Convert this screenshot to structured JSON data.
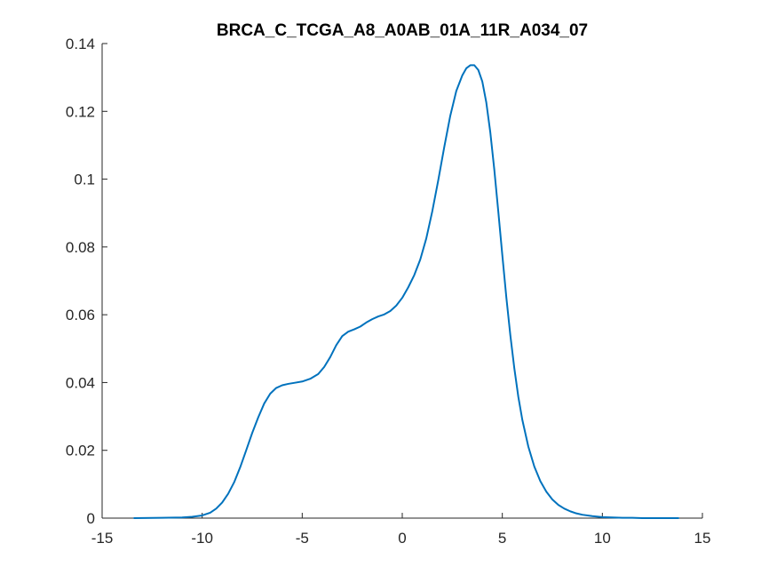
{
  "chart_data": {
    "type": "line",
    "title": "BRCA_C_TCGA_A8_A0AB_01A_11R_A034_07",
    "xlabel": "",
    "ylabel": "",
    "xlim": [
      -15,
      15
    ],
    "ylim": [
      0,
      0.14
    ],
    "xticks": [
      -15,
      -10,
      -5,
      0,
      5,
      10,
      15
    ],
    "xtick_labels": [
      "-15",
      "-10",
      "-5",
      "0",
      "5",
      "10",
      "15"
    ],
    "yticks": [
      0,
      0.02,
      0.04,
      0.06,
      0.08,
      0.1,
      0.12,
      0.14
    ],
    "ytick_labels": [
      "0",
      "0.02",
      "0.04",
      "0.06",
      "0.08",
      "0.1",
      "0.12",
      "0.14"
    ],
    "grid": false,
    "line_color": "#0072BD",
    "series": [
      {
        "x": [
          -13.4,
          -12.0,
          -11.0,
          -10.5,
          -10.0,
          -9.6,
          -9.3,
          -9.0,
          -8.7,
          -8.4,
          -8.1,
          -7.8,
          -7.5,
          -7.2,
          -6.9,
          -6.6,
          -6.3,
          -6.0,
          -5.7,
          -5.4,
          -5.0,
          -4.6,
          -4.2,
          -3.9,
          -3.6,
          -3.3,
          -3.0,
          -2.7,
          -2.4,
          -2.1,
          -1.8,
          -1.5,
          -1.2,
          -0.9,
          -0.6,
          -0.3,
          0.0,
          0.3,
          0.6,
          0.9,
          1.2,
          1.5,
          1.8,
          2.1,
          2.4,
          2.7,
          3.0,
          3.2,
          3.4,
          3.6,
          3.8,
          4.0,
          4.2,
          4.4,
          4.6,
          4.8,
          5.0,
          5.2,
          5.4,
          5.6,
          5.8,
          6.0,
          6.3,
          6.6,
          6.9,
          7.2,
          7.5,
          7.8,
          8.1,
          8.4,
          8.7,
          9.0,
          9.5,
          10.0,
          10.5,
          11.0,
          11.5,
          12.0,
          13.0,
          13.8
        ],
        "y": [
          0.0,
          0.0001,
          0.0002,
          0.0004,
          0.0008,
          0.0016,
          0.0028,
          0.0046,
          0.0072,
          0.0106,
          0.015,
          0.02,
          0.0251,
          0.0297,
          0.0338,
          0.0367,
          0.0384,
          0.0392,
          0.0396,
          0.0399,
          0.0403,
          0.0411,
          0.0425,
          0.0446,
          0.0475,
          0.051,
          0.0537,
          0.055,
          0.0557,
          0.0565,
          0.0577,
          0.0587,
          0.0595,
          0.0601,
          0.0611,
          0.0627,
          0.065,
          0.0681,
          0.0717,
          0.0763,
          0.0825,
          0.0905,
          0.0997,
          0.1095,
          0.1187,
          0.126,
          0.1306,
          0.1327,
          0.1336,
          0.1336,
          0.1322,
          0.1288,
          0.1226,
          0.1138,
          0.1028,
          0.0904,
          0.0776,
          0.0652,
          0.054,
          0.0442,
          0.0358,
          0.029,
          0.0211,
          0.0152,
          0.0109,
          0.0078,
          0.0055,
          0.0039,
          0.0028,
          0.002,
          0.0014,
          0.001,
          0.0006,
          0.0003,
          0.0002,
          0.0001,
          0.0001,
          0.0,
          0.0,
          0.0
        ]
      }
    ]
  }
}
